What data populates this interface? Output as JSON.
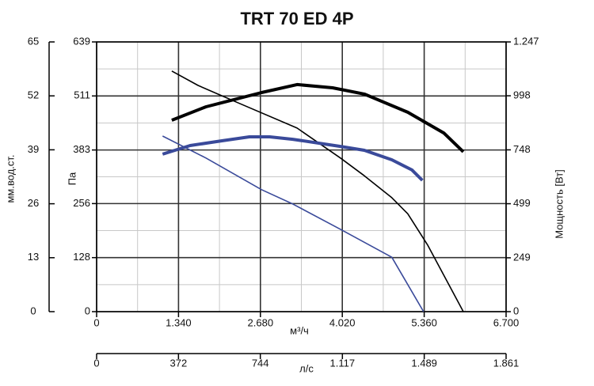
{
  "chart_data": {
    "type": "line",
    "title": "TRT 70 ED 4P",
    "xlabel": "м³/ч",
    "xlim": [
      0,
      6700
    ],
    "xticks": [
      0,
      {
        "value": 1340,
        "label": "1.340"
      },
      {
        "value": 2680,
        "label": "2.680"
      },
      {
        "value": 4020,
        "label": "4.020"
      },
      {
        "value": 5360,
        "label": "5.360"
      },
      {
        "value": 6700,
        "label": "6.700"
      }
    ],
    "x2label": "л/с",
    "x2lim": [
      0,
      1861
    ],
    "x2ticks": [
      0,
      372,
      744,
      {
        "value": 1117,
        "label": "1.117"
      },
      {
        "value": 1489,
        "label": "1.489"
      },
      {
        "value": 1861,
        "label": "1.861"
      }
    ],
    "ylabel": "Па",
    "ylim": [
      0,
      639
    ],
    "yticks": [
      0,
      128,
      256,
      383,
      511,
      639
    ],
    "y2label": "Мощность [Вт]",
    "y2lim": [
      0,
      1247
    ],
    "y2ticks": [
      0,
      249,
      499,
      748,
      998,
      {
        "value": 1247,
        "label": "1.247"
      }
    ],
    "y3label": "мм.вод.ст.",
    "y3lim": [
      0,
      65
    ],
    "y3ticks": [
      0,
      13,
      26,
      39,
      52,
      65
    ],
    "grid": true,
    "series": [
      {
        "color": "#000000",
        "axis": "y",
        "x": [
          1230,
          1660,
          2310,
          3280,
          3990,
          4380,
          4830,
          5090,
          5420,
          6000
        ],
        "values": [
          570,
          536,
          495,
          435,
          364,
          322,
          270,
          232,
          157,
          0
        ]
      },
      {
        "color": "#000000",
        "axis": "y2",
        "x": [
          1230,
          1790,
          2700,
          3280,
          3860,
          4380,
          5090,
          5680,
          6000
        ],
        "values": [
          885,
          947,
          1013,
          1050,
          1035,
          1006,
          922,
          826,
          739
        ]
      },
      {
        "color": "#3a4a9a",
        "axis": "y",
        "x": [
          1080,
          1790,
          2700,
          3210,
          3990,
          4830,
          5350
        ],
        "values": [
          416,
          364,
          289,
          255,
          195,
          129,
          0
        ]
      },
      {
        "color": "#3a4a9a",
        "axis": "y2",
        "x": [
          1080,
          1530,
          2050,
          2500,
          2830,
          3210,
          3990,
          4380,
          4830,
          5160,
          5330
        ],
        "values": [
          728,
          768,
          790,
          808,
          808,
          797,
          764,
          746,
          702,
          655,
          607
        ]
      }
    ]
  }
}
